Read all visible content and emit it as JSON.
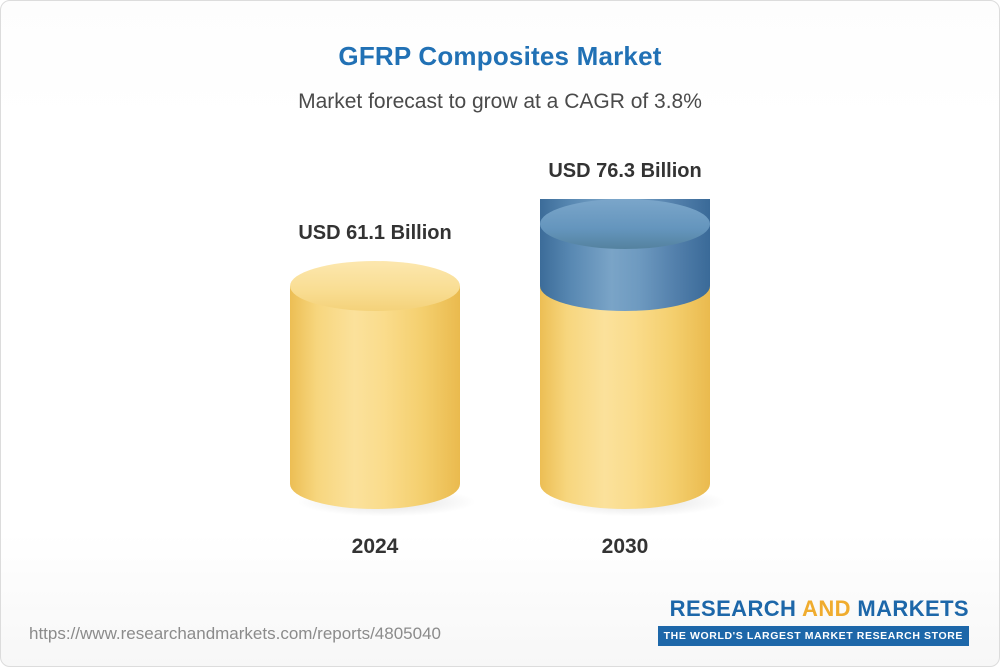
{
  "header": {
    "title": "GFRP Composites Market",
    "subtitle": "Market forecast to grow at a CAGR of 3.8%"
  },
  "chart_data": {
    "type": "bar",
    "variant": "3d-cylinder",
    "title": "GFRP Composites Market",
    "subtitle": "Market forecast to grow at a CAGR of 3.8%",
    "cagr_percent": 3.8,
    "unit": "USD Billion",
    "categories": [
      "2024",
      "2030"
    ],
    "values": [
      61.1,
      76.3
    ],
    "value_labels": [
      "USD 61.1 Billion",
      "USD 76.3 Billion"
    ],
    "notes": "2030 cylinder shows growth increment over 2024 as a blue cap segment",
    "colors": {
      "bar_body": "#f7d77f",
      "bar_top": "#fbe3a2",
      "growth_cap": "#5b8bb4",
      "growth_cap_top": "#74a1c6",
      "title_text": "#2171b5",
      "label_text": "#333333"
    },
    "legend": false,
    "grid": false
  },
  "footer": {
    "url": "https://www.researchandmarkets.com/reports/4805040",
    "logo": {
      "research": "RESEARCH",
      "and": "AND",
      "markets": "MARKETS",
      "tagline": "THE WORLD'S LARGEST MARKET RESEARCH STORE"
    }
  }
}
